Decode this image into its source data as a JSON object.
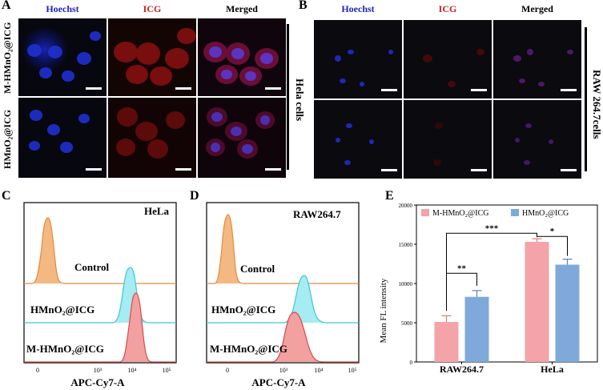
{
  "panel_letters": {
    "a": "A",
    "b": "B",
    "c": "C",
    "d": "D",
    "e": "E"
  },
  "microscopy": {
    "columns": [
      "Hoechst",
      "ICG",
      "Merged"
    ],
    "column_colors": [
      "#1f1fbf",
      "#d31c1c",
      "#000000"
    ],
    "panel_a": {
      "row_labels": [
        "M-HMnO₂@ICG",
        "HMnO₂@ICG"
      ],
      "side_label": "Hela cells"
    },
    "panel_b": {
      "side_label": "RAW 264.7cells"
    }
  },
  "flow": {
    "panel_c": {
      "cell_line": "HeLa",
      "labels": [
        "Control",
        "HMnO₂@ICG",
        "M-HMnO₂@ICG"
      ],
      "xlabel": "APC-Cy7-A"
    },
    "panel_d": {
      "cell_line": "RAW264.7",
      "labels": [
        "Control",
        "HMnO₂@ICG",
        "M-HMnO₂@ICG"
      ],
      "xlabel": "APC-Cy7-A"
    },
    "x_ticks": [
      "0",
      "10³",
      "10⁴",
      "10⁵"
    ],
    "colors": {
      "control": "#f4a460",
      "hmno2": "#87e6ee",
      "mhmno2": "#e88a8a"
    }
  },
  "chart_data": {
    "type": "bar",
    "categories": [
      "RAW264.7",
      "HeLa"
    ],
    "series": [
      {
        "name": "M-HMnO₂@ICG",
        "values": [
          5100,
          15300
        ],
        "errors": [
          800,
          400
        ],
        "color": "#f4a3a8"
      },
      {
        "name": "HMnO₂@ICG",
        "values": [
          8300,
          12400
        ],
        "errors": [
          800,
          700
        ],
        "color": "#7fa9d9"
      }
    ],
    "xlabel": "",
    "ylabel": "Mean FL intensity",
    "ylim": [
      0,
      20000
    ],
    "yticks": [
      "0",
      "5000",
      "10000",
      "15000",
      "20000"
    ],
    "legend_position": "top",
    "significance": [
      {
        "label": "**",
        "between": "RAW264.7 M-HMnO₂@ICG vs HMnO₂@ICG"
      },
      {
        "label": "***",
        "between": "M-HMnO₂@ICG RAW264.7 vs HeLa"
      },
      {
        "label": "*",
        "between": "HeLa M-HMnO₂@ICG vs HMnO₂@ICG"
      }
    ]
  }
}
